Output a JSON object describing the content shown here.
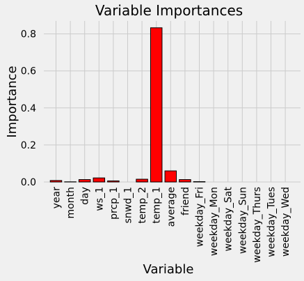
{
  "chart_data": {
    "type": "bar",
    "title": "Variable Importances",
    "xlabel": "Variable",
    "ylabel": "Importance",
    "categories": [
      "year",
      "month",
      "day",
      "ws_1",
      "prcp_1",
      "snwd_1",
      "temp_2",
      "temp_1",
      "average",
      "friend",
      "weekday_Fri",
      "weekday_Mon",
      "weekday_Sat",
      "weekday_Sun",
      "weekday_Thurs",
      "weekday_Tues",
      "weekday_Wed"
    ],
    "values": [
      0.008,
      0.001,
      0.013,
      0.022,
      0.006,
      0.0,
      0.015,
      0.833,
      0.06,
      0.013,
      0.002,
      0.0,
      0.0,
      0.0,
      0.0,
      0.0,
      0.0
    ],
    "ylim": [
      0,
      0.87
    ],
    "yticks": [
      "0.0",
      "0.2",
      "0.4",
      "0.6",
      "0.8"
    ],
    "grid": true,
    "colors": {
      "bar_fill": "#ff0000",
      "bar_edge": "#000000",
      "grid": "#cbcbcb",
      "background": "#f0f0f0"
    }
  }
}
